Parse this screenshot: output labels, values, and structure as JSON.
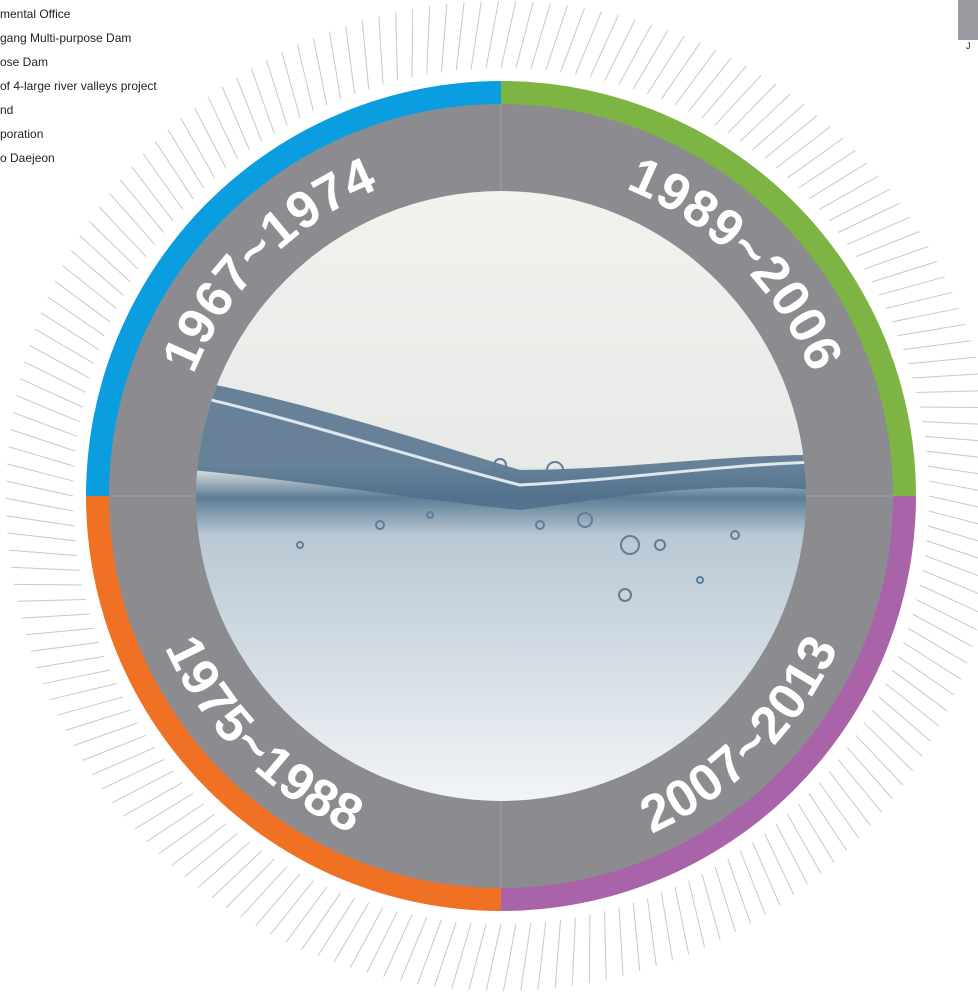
{
  "left_list": [
    "mental Office",
    "gang Multi-purpose Dam",
    "ose Dam",
    "of 4-large river valleys project",
    "nd",
    "poration",
    "o Daejeon"
  ],
  "periods": {
    "top_left": "1967~1974",
    "top_right": "1989~2006",
    "bottom_left": "1975~1988",
    "bottom_right": "2007~2013"
  },
  "thumbnail_caption": "J"
}
